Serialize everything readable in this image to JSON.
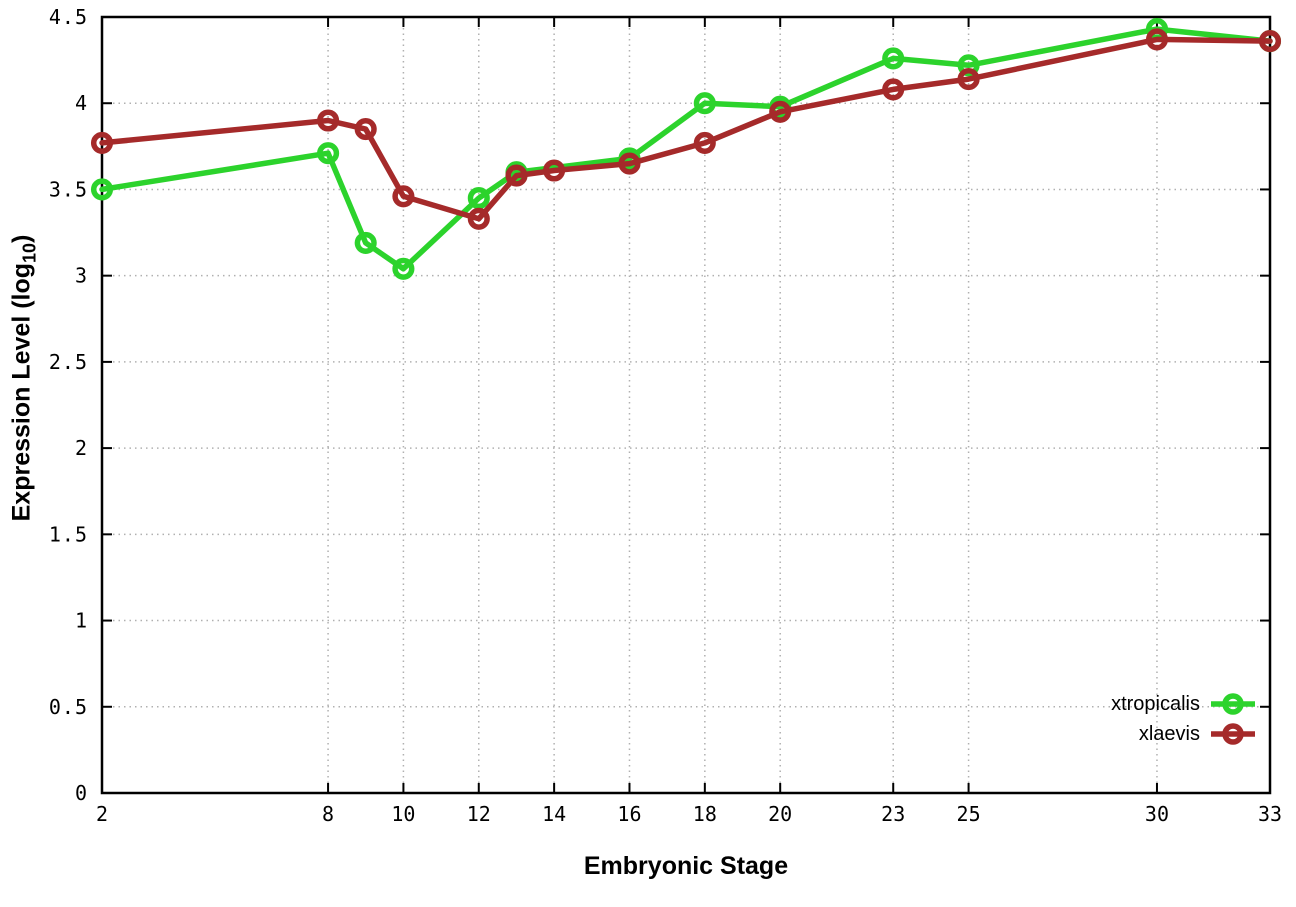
{
  "chart_data": {
    "type": "line",
    "title": "",
    "xlabel": "Embryonic Stage",
    "ylabel": "Expression Level (log10)",
    "ylabel_parts": {
      "pre": "Expression Level (log",
      "sub": "10",
      "post": ")"
    },
    "xlim": [
      2,
      33
    ],
    "ylim": [
      0,
      4.5
    ],
    "x_ticks": [
      2,
      8,
      10,
      12,
      14,
      16,
      18,
      20,
      23,
      25,
      30,
      33
    ],
    "y_ticks": [
      0,
      0.5,
      1,
      1.5,
      2,
      2.5,
      3,
      3.5,
      4,
      4.5
    ],
    "grid": "dotted",
    "grid_color": "#b0b0b0",
    "axis_color": "#000000",
    "marker_style": "open-circle",
    "legend_position": "inside bottom-right",
    "series": [
      {
        "name": "xtropicalis",
        "color": "#2cd32c",
        "x": [
          2,
          8,
          9,
          10,
          12,
          13,
          16,
          18,
          20,
          23,
          25,
          30,
          33
        ],
        "y": [
          3.5,
          3.71,
          3.19,
          3.04,
          3.45,
          3.6,
          3.68,
          4.0,
          3.98,
          4.26,
          4.22,
          4.43,
          4.36
        ]
      },
      {
        "name": "xlaevis",
        "color": "#a52a2a",
        "x": [
          2,
          8,
          9,
          10,
          12,
          13,
          14,
          16,
          18,
          20,
          23,
          25,
          30,
          33
        ],
        "y": [
          3.77,
          3.9,
          3.85,
          3.46,
          3.33,
          3.58,
          3.61,
          3.65,
          3.77,
          3.95,
          4.08,
          4.14,
          4.37,
          4.36
        ]
      }
    ]
  }
}
